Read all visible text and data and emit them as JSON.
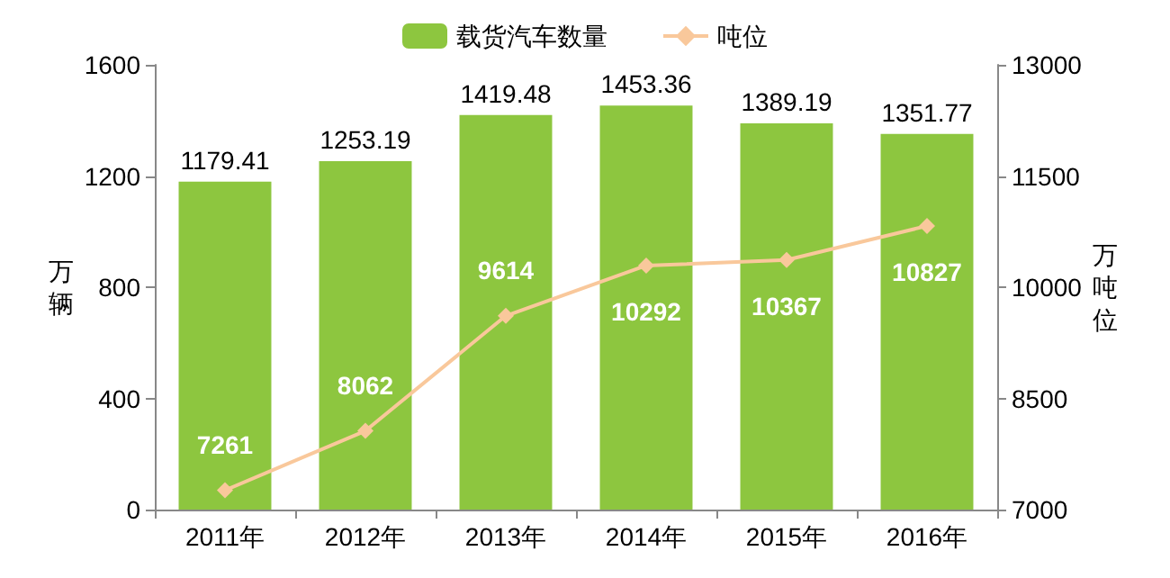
{
  "chart_data": {
    "type": "bar",
    "categories": [
      "2011年",
      "2012年",
      "2013年",
      "2014年",
      "2015年",
      "2016年"
    ],
    "series": [
      {
        "name": "载货汽车数量",
        "color": "#8dc63f",
        "values": [
          1179.41,
          1253.19,
          1419.48,
          1453.36,
          1389.19,
          1351.77
        ]
      },
      {
        "name": "吨位",
        "type": "line",
        "axis": "y2",
        "color": "#f9c89b",
        "marker": "diamond",
        "values": [
          7261,
          8062,
          9614,
          10292,
          10367,
          10827
        ]
      }
    ],
    "ylabel": "万辆",
    "y2label": "万吨位",
    "ylim": [
      0,
      1600
    ],
    "yticks": [
      0,
      400,
      800,
      1200,
      1600
    ],
    "y2lim": [
      7000,
      13000
    ],
    "y2ticks": [
      7000,
      8500,
      10000,
      11500,
      13000
    ],
    "data_labels": true,
    "legend": "top",
    "grid": false
  }
}
